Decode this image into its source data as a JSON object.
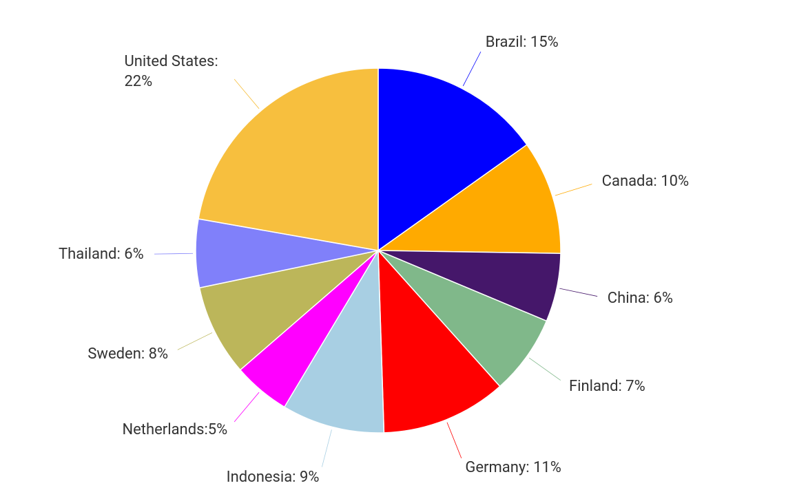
{
  "chart_data": {
    "type": "pie",
    "values": [
      15,
      10,
      6,
      7,
      11,
      9,
      5,
      8,
      6,
      22
    ],
    "value_labels": [
      "Brazil: 15%",
      "Canada: 10%",
      "China: 6%",
      "Finland: 7%",
      "Germany: 11%",
      "Indonesia: 9%",
      "Netherlands:5%",
      "Sweden: 8%",
      "Thailand: 6%",
      "United States: 22%"
    ],
    "colors": [
      "#0000ff",
      "#ffaa00",
      "#45176a",
      "#80b88a",
      "#ff0000",
      "#a8cfe3",
      "#ff00ff",
      "#bcb65a",
      "#8080fa",
      "#f7bf3e"
    ]
  }
}
